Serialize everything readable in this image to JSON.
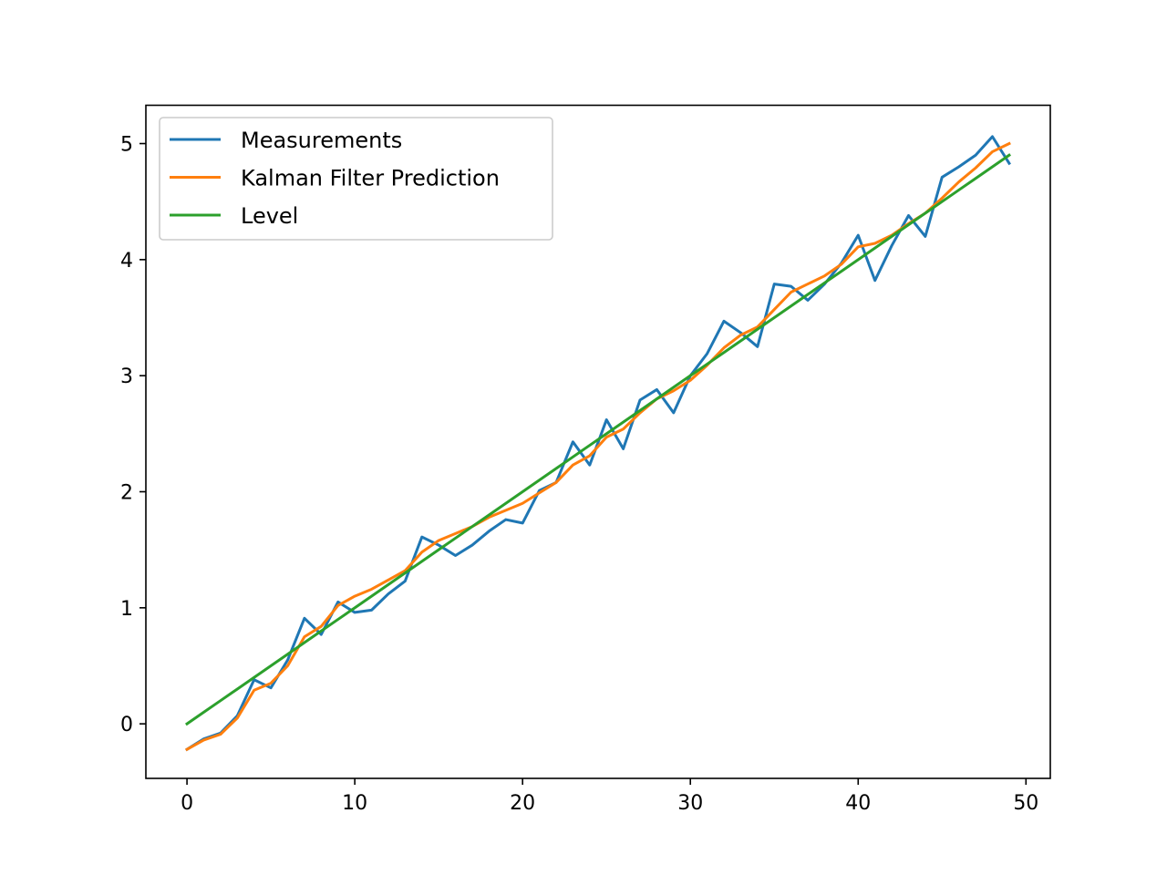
{
  "chart_data": {
    "type": "line",
    "title": "",
    "xlabel": "",
    "ylabel": "",
    "xlim": [
      -2.45,
      51.45
    ],
    "ylim": [
      -0.47,
      5.33
    ],
    "xticks": [
      0,
      10,
      20,
      30,
      40,
      50
    ],
    "yticks": [
      0,
      1,
      2,
      3,
      4,
      5
    ],
    "xtick_labels": [
      "0",
      "10",
      "20",
      "30",
      "40",
      "50"
    ],
    "ytick_labels": [
      "0",
      "1",
      "2",
      "3",
      "4",
      "5"
    ],
    "grid": false,
    "legend_position": "upper-left",
    "x": [
      0,
      1,
      2,
      3,
      4,
      5,
      6,
      7,
      8,
      9,
      10,
      11,
      12,
      13,
      14,
      15,
      16,
      17,
      18,
      19,
      20,
      21,
      22,
      23,
      24,
      25,
      26,
      27,
      28,
      29,
      30,
      31,
      32,
      33,
      34,
      35,
      36,
      37,
      38,
      39,
      40,
      41,
      42,
      43,
      44,
      45,
      46,
      47,
      48,
      49
    ],
    "series": [
      {
        "name": "Measurements",
        "color": "#1f77b4",
        "values": [
          -0.22,
          -0.13,
          -0.08,
          0.07,
          0.38,
          0.31,
          0.55,
          0.91,
          0.77,
          1.05,
          0.96,
          0.98,
          1.12,
          1.23,
          1.61,
          1.54,
          1.45,
          1.54,
          1.66,
          1.76,
          1.73,
          2.01,
          2.08,
          2.43,
          2.23,
          2.62,
          2.37,
          2.79,
          2.88,
          2.68,
          3.0,
          3.19,
          3.47,
          3.37,
          3.25,
          3.79,
          3.77,
          3.65,
          3.79,
          3.97,
          4.21,
          3.82,
          4.12,
          4.38,
          4.2,
          4.71,
          4.8,
          4.9,
          5.06,
          4.83
        ]
      },
      {
        "name": "Kalman Filter Prediction",
        "color": "#ff7f0e",
        "values": [
          -0.22,
          -0.14,
          -0.09,
          0.05,
          0.29,
          0.35,
          0.5,
          0.75,
          0.84,
          1.02,
          1.1,
          1.16,
          1.24,
          1.32,
          1.48,
          1.58,
          1.64,
          1.7,
          1.78,
          1.84,
          1.9,
          1.99,
          2.08,
          2.23,
          2.31,
          2.47,
          2.54,
          2.68,
          2.8,
          2.87,
          2.96,
          3.09,
          3.24,
          3.35,
          3.42,
          3.57,
          3.72,
          3.79,
          3.86,
          3.96,
          4.11,
          4.14,
          4.21,
          4.31,
          4.4,
          4.53,
          4.67,
          4.79,
          4.93,
          5.0
        ]
      },
      {
        "name": "Level",
        "color": "#2ca02c",
        "values": [
          0.0,
          0.1,
          0.2,
          0.3,
          0.4,
          0.5,
          0.6,
          0.7,
          0.8,
          0.9,
          1.0,
          1.1,
          1.2,
          1.3,
          1.4,
          1.5,
          1.6,
          1.7,
          1.8,
          1.9,
          2.0,
          2.1,
          2.2,
          2.3,
          2.4,
          2.5,
          2.6,
          2.7,
          2.8,
          2.9,
          3.0,
          3.1,
          3.2,
          3.3,
          3.4,
          3.5,
          3.6,
          3.7,
          3.8,
          3.9,
          4.0,
          4.1,
          4.2,
          4.3,
          4.4,
          4.5,
          4.6,
          4.7,
          4.8,
          4.9
        ]
      }
    ]
  }
}
